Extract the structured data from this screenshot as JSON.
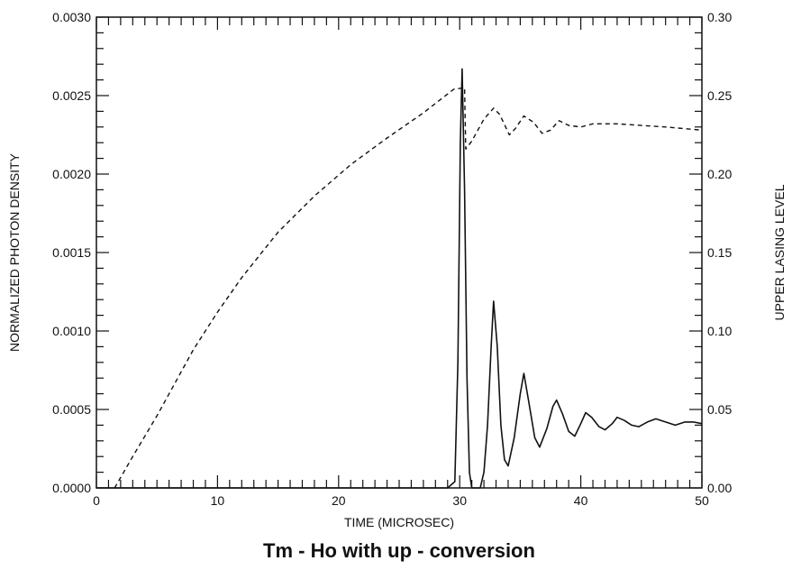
{
  "chart_data": {
    "type": "line",
    "title": "Tm - Ho with up - conversion",
    "xlabel": "TIME (MICROSEC)",
    "ylabel_left": "NORMALIZED PHOTON DENSITY",
    "ylabel_right": "UPPER LASING LEVEL",
    "xlim": [
      0,
      50
    ],
    "ylim_left": [
      0,
      0.003
    ],
    "ylim_right": [
      0,
      0.3
    ],
    "x_ticks": [
      "0",
      "10",
      "20",
      "30",
      "40",
      "50"
    ],
    "y_left_ticks": [
      "0.0000",
      "0.0005",
      "0.0010",
      "0.0015",
      "0.0020",
      "0.0025",
      "0.0030"
    ],
    "y_right_ticks": [
      "0.00",
      "0.05",
      "0.10",
      "0.15",
      "0.20",
      "0.25",
      "0.30"
    ],
    "grid": false,
    "series": [
      {
        "axis": "left",
        "style": "solid",
        "points": [
          [
            0,
            0
          ],
          [
            29.0,
            0
          ],
          [
            29.6,
            4e-05
          ],
          [
            29.85,
            0.0008
          ],
          [
            30.05,
            0.0022
          ],
          [
            30.2,
            0.00267
          ],
          [
            30.4,
            0.0019
          ],
          [
            30.6,
            0.0007
          ],
          [
            30.8,
            0.0001
          ],
          [
            31.0,
            0
          ],
          [
            31.7,
            0
          ],
          [
            32.0,
            0.0001
          ],
          [
            32.3,
            0.0004
          ],
          [
            32.6,
            0.0009
          ],
          [
            32.8,
            0.00119
          ],
          [
            33.1,
            0.0009
          ],
          [
            33.4,
            0.0004
          ],
          [
            33.7,
            0.00018
          ],
          [
            34.0,
            0.00014
          ],
          [
            34.5,
            0.00032
          ],
          [
            35.0,
            0.0006
          ],
          [
            35.3,
            0.00073
          ],
          [
            35.7,
            0.00055
          ],
          [
            36.2,
            0.00032
          ],
          [
            36.6,
            0.00026
          ],
          [
            37.2,
            0.00038
          ],
          [
            37.7,
            0.00052
          ],
          [
            38.0,
            0.00056
          ],
          [
            38.5,
            0.00047
          ],
          [
            39.0,
            0.00036
          ],
          [
            39.5,
            0.00033
          ],
          [
            40.0,
            0.00041
          ],
          [
            40.4,
            0.00048
          ],
          [
            40.9,
            0.00045
          ],
          [
            41.5,
            0.00039
          ],
          [
            42.0,
            0.00037
          ],
          [
            42.6,
            0.00041
          ],
          [
            43.0,
            0.00045
          ],
          [
            43.6,
            0.00043
          ],
          [
            44.2,
            0.0004
          ],
          [
            44.8,
            0.00039
          ],
          [
            45.5,
            0.00042
          ],
          [
            46.2,
            0.00044
          ],
          [
            47.0,
            0.00042
          ],
          [
            47.8,
            0.0004
          ],
          [
            48.6,
            0.00042
          ],
          [
            49.3,
            0.00042
          ],
          [
            50.0,
            0.00041
          ]
        ]
      },
      {
        "axis": "right",
        "style": "dashed",
        "points": [
          [
            1.5,
            0.0
          ],
          [
            3,
            0.02
          ],
          [
            5,
            0.046
          ],
          [
            8,
            0.088
          ],
          [
            10,
            0.112
          ],
          [
            12,
            0.134
          ],
          [
            15,
            0.163
          ],
          [
            18,
            0.186
          ],
          [
            21,
            0.206
          ],
          [
            24,
            0.223
          ],
          [
            27,
            0.239
          ],
          [
            29.5,
            0.254
          ],
          [
            30.4,
            0.255
          ],
          [
            30.5,
            0.216
          ],
          [
            31.0,
            0.221
          ],
          [
            32.0,
            0.235
          ],
          [
            32.8,
            0.242
          ],
          [
            33.3,
            0.238
          ],
          [
            34.1,
            0.225
          ],
          [
            34.6,
            0.229
          ],
          [
            35.3,
            0.237
          ],
          [
            36.1,
            0.233
          ],
          [
            36.8,
            0.226
          ],
          [
            37.5,
            0.228
          ],
          [
            38.2,
            0.234
          ],
          [
            39.0,
            0.231
          ],
          [
            40.0,
            0.23
          ],
          [
            41.0,
            0.232
          ],
          [
            43.0,
            0.232
          ],
          [
            45.0,
            0.231
          ],
          [
            47.0,
            0.23
          ],
          [
            50.0,
            0.228
          ]
        ]
      }
    ]
  }
}
